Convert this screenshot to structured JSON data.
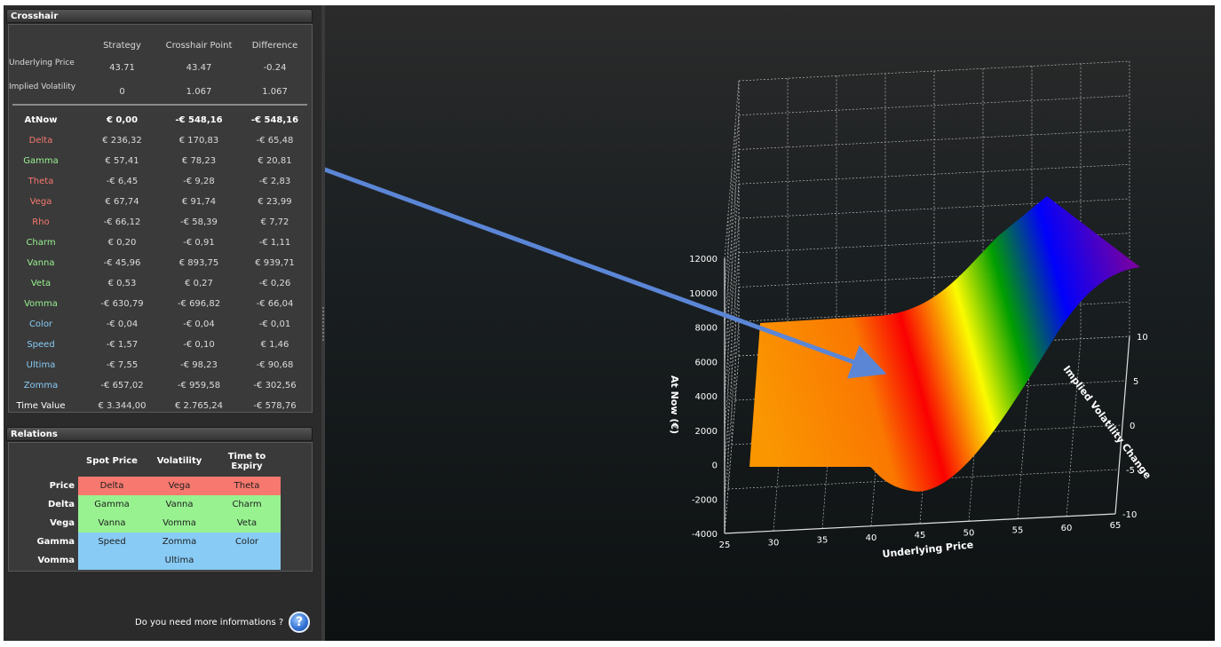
{
  "crosshair": {
    "title": "Crosshair",
    "columns": [
      "Strategy",
      "Crosshair Point",
      "Difference"
    ],
    "inputs": [
      {
        "label": "Underlying Price",
        "values": [
          "43.71",
          "43.47",
          "-0.24"
        ]
      },
      {
        "label": "Implied Volatility",
        "values": [
          "0",
          "1.067",
          "1.067"
        ]
      }
    ],
    "greeks": [
      {
        "label": "AtNow",
        "color": "#ffffff",
        "values": [
          "€ 0,00",
          "-€ 548,16",
          "-€ 548,16"
        ]
      },
      {
        "label": "Delta",
        "color": "#f6786e",
        "values": [
          "€ 236,32",
          "€ 170,83",
          "-€ 65,48"
        ]
      },
      {
        "label": "Gamma",
        "color": "#98f290",
        "values": [
          "€ 57,41",
          "€ 78,23",
          "€ 20,81"
        ]
      },
      {
        "label": "Theta",
        "color": "#f6786e",
        "values": [
          "-€ 6,45",
          "-€ 9,28",
          "-€ 2,83"
        ]
      },
      {
        "label": "Vega",
        "color": "#f6786e",
        "values": [
          "€ 67,74",
          "€ 91,74",
          "€ 23,99"
        ]
      },
      {
        "label": "Rho",
        "color": "#f6786e",
        "values": [
          "-€ 66,12",
          "-€ 58,39",
          "€ 7,72"
        ]
      },
      {
        "label": "Charm",
        "color": "#98f290",
        "values": [
          "€ 0,20",
          "-€ 0,91",
          "-€ 1,11"
        ]
      },
      {
        "label": "Vanna",
        "color": "#98f290",
        "values": [
          "-€ 45,96",
          "€ 893,75",
          "€ 939,71"
        ]
      },
      {
        "label": "Veta",
        "color": "#98f290",
        "values": [
          "€ 0,53",
          "€ 0,27",
          "-€ 0,26"
        ]
      },
      {
        "label": "Vomma",
        "color": "#98f290",
        "values": [
          "-€ 630,79",
          "-€ 696,82",
          "-€ 66,04"
        ]
      },
      {
        "label": "Color",
        "color": "#88ccf6",
        "values": [
          "-€ 0,04",
          "-€ 0,04",
          "-€ 0,01"
        ]
      },
      {
        "label": "Speed",
        "color": "#88ccf6",
        "values": [
          "-€ 1,57",
          "-€ 0,10",
          "€ 1,46"
        ]
      },
      {
        "label": "Ultima",
        "color": "#88ccf6",
        "values": [
          "-€ 7,55",
          "-€ 98,23",
          "-€ 90,68"
        ]
      },
      {
        "label": "Zomma",
        "color": "#88ccf6",
        "values": [
          "-€ 657,02",
          "-€ 959,58",
          "-€ 302,56"
        ]
      },
      {
        "label": "Time Value",
        "color": "#ffffff",
        "values": [
          "€ 3.344,00",
          "€ 2.765,24",
          "-€ 578,76"
        ]
      }
    ]
  },
  "relations": {
    "title": "Relations",
    "columns": [
      "Spot Price",
      "Volatility",
      "Time to Expiry"
    ],
    "rows": [
      {
        "label": "Price",
        "bg": "red",
        "cells": [
          "Delta",
          "Vega",
          "Theta"
        ]
      },
      {
        "label": "Delta",
        "bg": "green",
        "cells": [
          "Gamma",
          "Vanna",
          "Charm"
        ]
      },
      {
        "label": "Vega",
        "bg": "green",
        "cells": [
          "Vanna",
          "Vomma",
          "Veta"
        ]
      },
      {
        "label": "Gamma",
        "bg": "blue",
        "cells": [
          "Speed",
          "Zomma",
          "Color"
        ]
      },
      {
        "label": "Vomma",
        "bg": "blue",
        "cells": [
          "",
          "Ultima",
          ""
        ]
      }
    ]
  },
  "help": {
    "text": "Do you need more informations ?",
    "icon": "help-question-icon",
    "glyph": "?"
  },
  "chart_data": {
    "type": "surface",
    "xlabel": "Underlying Price",
    "ylabel": "Implied Volatility Change",
    "zlabel": "At Now (€)",
    "x_ticks": [
      "25",
      "30",
      "35",
      "40",
      "45",
      "50",
      "55",
      "60",
      "65"
    ],
    "y_ticks": [
      "-10",
      "-5",
      "0",
      "5",
      "10"
    ],
    "z_ticks": [
      "-4000",
      "-2000",
      "0",
      "2000",
      "4000",
      "6000",
      "8000",
      "10000",
      "12000"
    ],
    "xlim": [
      25,
      65
    ],
    "ylim": [
      -10,
      10
    ],
    "zlim": [
      -4000,
      12000
    ],
    "grid": true,
    "colors": [
      "#ff9900",
      "#ff0000",
      "#ffff00",
      "#00a000",
      "#0000ff",
      "#8000a0"
    ]
  }
}
